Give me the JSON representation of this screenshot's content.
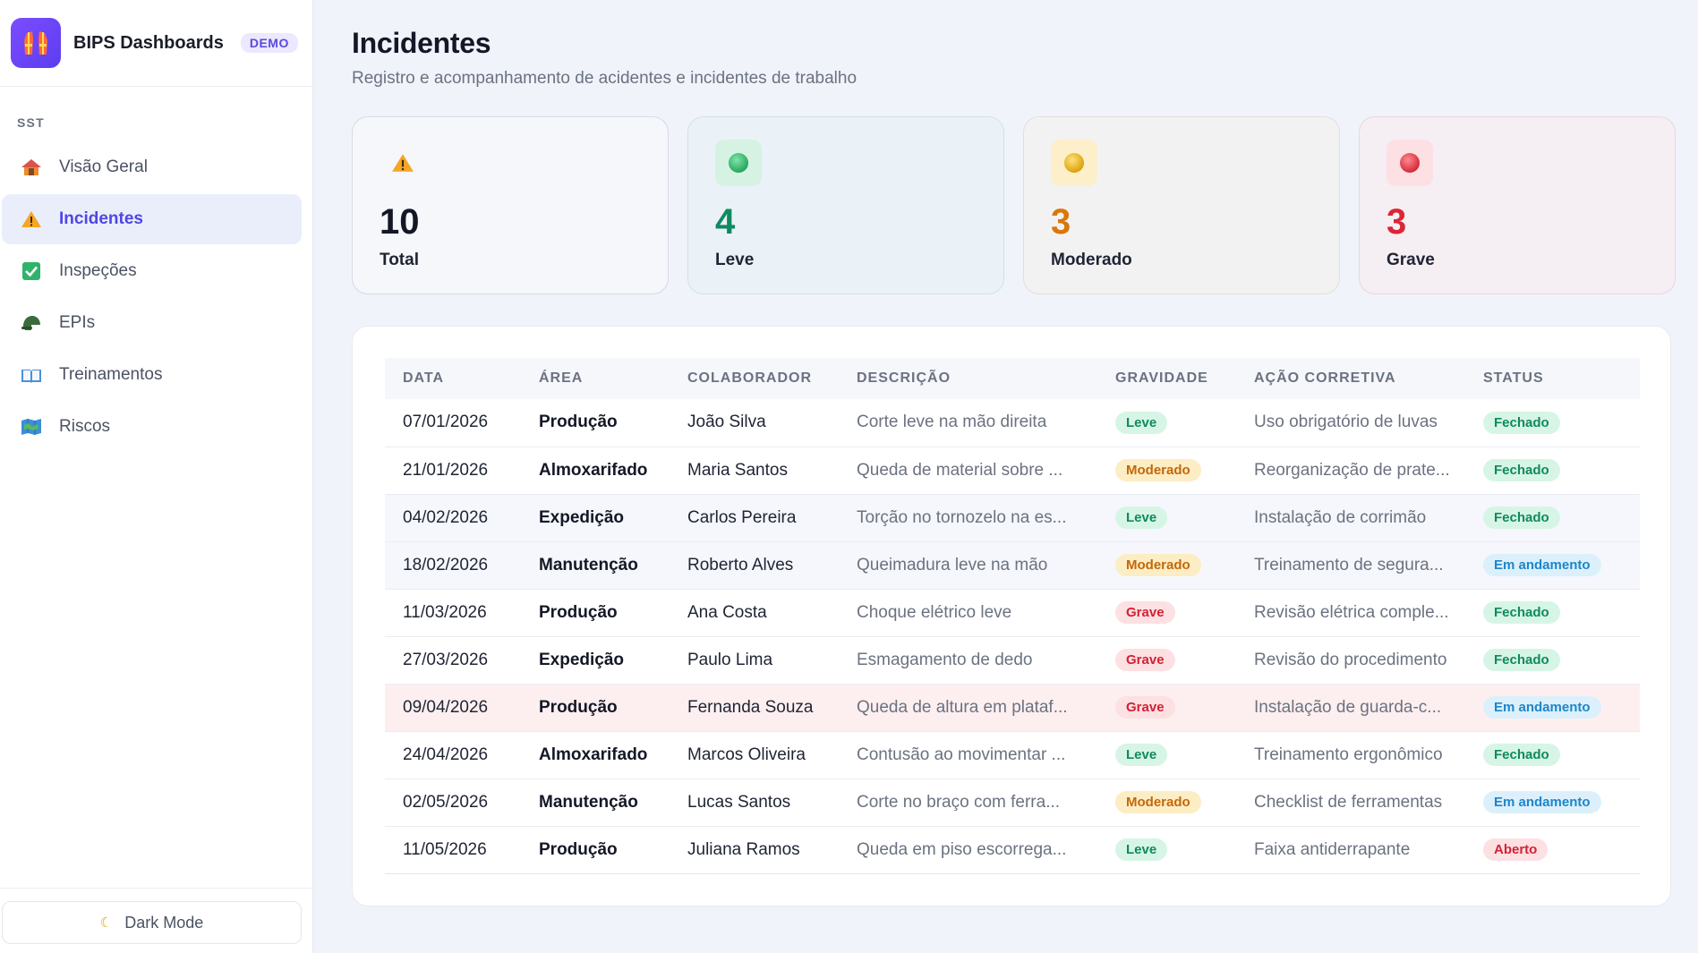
{
  "brand": {
    "name": "BIPS Dashboards",
    "badge": "DEMO"
  },
  "nav": {
    "section": "SST",
    "items": [
      {
        "label": "Visão Geral",
        "icon": "house-icon",
        "active": false
      },
      {
        "label": "Incidentes",
        "icon": "warning-icon",
        "active": true
      },
      {
        "label": "Inspeções",
        "icon": "checkbox-icon",
        "active": false
      },
      {
        "label": "EPIs",
        "icon": "helmet-icon",
        "active": false
      },
      {
        "label": "Treinamentos",
        "icon": "book-icon",
        "active": false
      },
      {
        "label": "Riscos",
        "icon": "map-icon",
        "active": false
      }
    ]
  },
  "footer": {
    "dark_mode_label": "Dark Mode"
  },
  "page": {
    "title": "Incidentes",
    "subtitle": "Registro e acompanhamento de acidentes e incidentes de trabalho"
  },
  "cards": [
    {
      "value": "10",
      "label": "Total"
    },
    {
      "value": "4",
      "label": "Leve"
    },
    {
      "value": "3",
      "label": "Moderado"
    },
    {
      "value": "3",
      "label": "Grave"
    }
  ],
  "table": {
    "headers": [
      "DATA",
      "ÁREA",
      "COLABORADOR",
      "DESCRIÇÃO",
      "GRAVIDADE",
      "AÇÃO CORRETIVA",
      "STATUS"
    ],
    "rows": [
      {
        "data": "07/01/2026",
        "area": "Produção",
        "colaborador": "João Silva",
        "descricao": "Corte leve na mão direita",
        "gravidade": "Leve",
        "acao": "Uso obrigatório de luvas",
        "status": "Fechado"
      },
      {
        "data": "21/01/2026",
        "area": "Almoxarifado",
        "colaborador": "Maria Santos",
        "descricao": "Queda de material sobre ...",
        "gravidade": "Moderado",
        "acao": "Reorganização de prate...",
        "status": "Fechado"
      },
      {
        "data": "04/02/2026",
        "area": "Expedição",
        "colaborador": "Carlos Pereira",
        "descricao": "Torção no tornozelo na es...",
        "gravidade": "Leve",
        "acao": "Instalação de corrimão",
        "status": "Fechado"
      },
      {
        "data": "18/02/2026",
        "area": "Manutenção",
        "colaborador": "Roberto Alves",
        "descricao": "Queimadura leve na mão",
        "gravidade": "Moderado",
        "acao": "Treinamento de segura...",
        "status": "Em andamento"
      },
      {
        "data": "11/03/2026",
        "area": "Produção",
        "colaborador": "Ana Costa",
        "descricao": "Choque elétrico leve",
        "gravidade": "Grave",
        "acao": "Revisão elétrica comple...",
        "status": "Fechado"
      },
      {
        "data": "27/03/2026",
        "area": "Expedição",
        "colaborador": "Paulo Lima",
        "descricao": "Esmagamento de dedo",
        "gravidade": "Grave",
        "acao": "Revisão do procedimento",
        "status": "Fechado"
      },
      {
        "data": "09/04/2026",
        "area": "Produção",
        "colaborador": "Fernanda Souza",
        "descricao": "Queda de altura em plataf...",
        "gravidade": "Grave",
        "acao": "Instalação de guarda-c...",
        "status": "Em andamento"
      },
      {
        "data": "24/04/2026",
        "area": "Almoxarifado",
        "colaborador": "Marcos Oliveira",
        "descricao": "Contusão ao movimentar ...",
        "gravidade": "Leve",
        "acao": "Treinamento ergonômico",
        "status": "Fechado"
      },
      {
        "data": "02/05/2026",
        "area": "Manutenção",
        "colaborador": "Lucas Santos",
        "descricao": "Corte no braço com ferra...",
        "gravidade": "Moderado",
        "acao": "Checklist de ferramentas",
        "status": "Em andamento"
      },
      {
        "data": "11/05/2026",
        "area": "Produção",
        "colaborador": "Juliana Ramos",
        "descricao": "Queda em piso escorrega...",
        "gravidade": "Leve",
        "acao": "Faixa antiderrapante",
        "status": "Aberto"
      }
    ]
  },
  "colors": {
    "accent": "#4f46e5",
    "leve": "#0f8a5f",
    "moderado": "#d9770a",
    "grave": "#dc2636",
    "em_andamento": "#1d86c9"
  }
}
